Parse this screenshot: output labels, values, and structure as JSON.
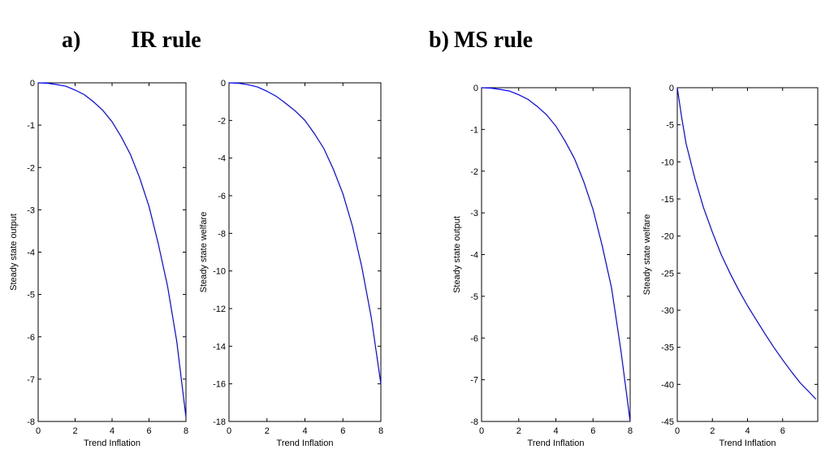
{
  "panels": [
    {
      "letter": "a)",
      "title": "IR rule"
    },
    {
      "letter": "b)",
      "title": "MS rule"
    }
  ],
  "colors": {
    "line": "#0000ff",
    "axes": "#000000"
  },
  "chart_data": [
    {
      "type": "line",
      "panel": "a",
      "xlabel": "Trend Inflation",
      "ylabel": "Steady state output",
      "xlim": [
        0,
        8
      ],
      "ylim": [
        -8,
        0
      ],
      "xticks": [
        0,
        2,
        4,
        6,
        8
      ],
      "yticks": [
        0,
        -1,
        -2,
        -3,
        -4,
        -5,
        -6,
        -7,
        -8
      ],
      "series": [
        {
          "x": [
            0,
            0.5,
            1,
            1.5,
            2,
            2.5,
            3,
            3.5,
            4,
            4.5,
            5,
            5.5,
            6,
            6.5,
            7,
            7.5,
            8
          ],
          "y": [
            0,
            -0.01,
            -0.04,
            -0.08,
            -0.17,
            -0.28,
            -0.45,
            -0.65,
            -0.92,
            -1.28,
            -1.7,
            -2.25,
            -2.92,
            -3.8,
            -4.8,
            -6.1,
            -7.9
          ]
        }
      ]
    },
    {
      "type": "line",
      "panel": "a",
      "xlabel": "Trend Inflation",
      "ylabel": "Steady state welfare",
      "xlim": [
        0,
        8
      ],
      "ylim": [
        -18,
        0
      ],
      "xticks": [
        0,
        2,
        4,
        6,
        8
      ],
      "yticks": [
        0,
        -2,
        -4,
        -6,
        -8,
        -10,
        -12,
        -14,
        -16,
        -18
      ],
      "series": [
        {
          "x": [
            0,
            0.5,
            1,
            1.5,
            2,
            2.5,
            3,
            3.5,
            4,
            4.5,
            5,
            5.5,
            6,
            6.5,
            7,
            7.5,
            8
          ],
          "y": [
            0,
            -0.02,
            -0.1,
            -0.22,
            -0.45,
            -0.72,
            -1.1,
            -1.5,
            -2.0,
            -2.7,
            -3.5,
            -4.6,
            -5.9,
            -7.6,
            -9.8,
            -12.5,
            -16.0
          ]
        }
      ]
    },
    {
      "type": "line",
      "panel": "b",
      "xlabel": "Trend Inflation",
      "ylabel": "Steady state output",
      "xlim": [
        0,
        8
      ],
      "ylim": [
        -8,
        0
      ],
      "xticks": [
        0,
        2,
        4,
        6,
        8
      ],
      "yticks": [
        0,
        -1,
        -2,
        -3,
        -4,
        -5,
        -6,
        -7,
        -8
      ],
      "series": [
        {
          "x": [
            0,
            0.5,
            1,
            1.5,
            2,
            2.5,
            3,
            3.5,
            4,
            4.5,
            5,
            5.5,
            6,
            6.5,
            7,
            7.5,
            8
          ],
          "y": [
            0,
            -0.01,
            -0.04,
            -0.08,
            -0.17,
            -0.28,
            -0.45,
            -0.65,
            -0.92,
            -1.28,
            -1.7,
            -2.25,
            -2.92,
            -3.8,
            -4.8,
            -6.3,
            -8.0
          ]
        }
      ]
    },
    {
      "type": "line",
      "panel": "b",
      "xlabel": "Trend Inflation",
      "ylabel": "Steady state welfare",
      "xlim": [
        0,
        8
      ],
      "ylim": [
        -45,
        0
      ],
      "xticks": [
        0,
        2,
        4,
        6
      ],
      "yticks": [
        0,
        -5,
        -10,
        -15,
        -20,
        -25,
        -30,
        -35,
        -40,
        -45
      ],
      "series": [
        {
          "x": [
            0,
            0.25,
            0.5,
            1,
            1.5,
            2,
            2.5,
            3,
            3.5,
            4,
            4.5,
            5,
            5.5,
            6,
            6.5,
            7,
            7.5,
            7.9
          ],
          "y": [
            0,
            -4.0,
            -7.5,
            -12.2,
            -16.2,
            -19.5,
            -22.5,
            -25.0,
            -27.3,
            -29.4,
            -31.3,
            -33.2,
            -35.0,
            -36.7,
            -38.3,
            -39.8,
            -41.0,
            -42.0
          ]
        }
      ]
    }
  ]
}
